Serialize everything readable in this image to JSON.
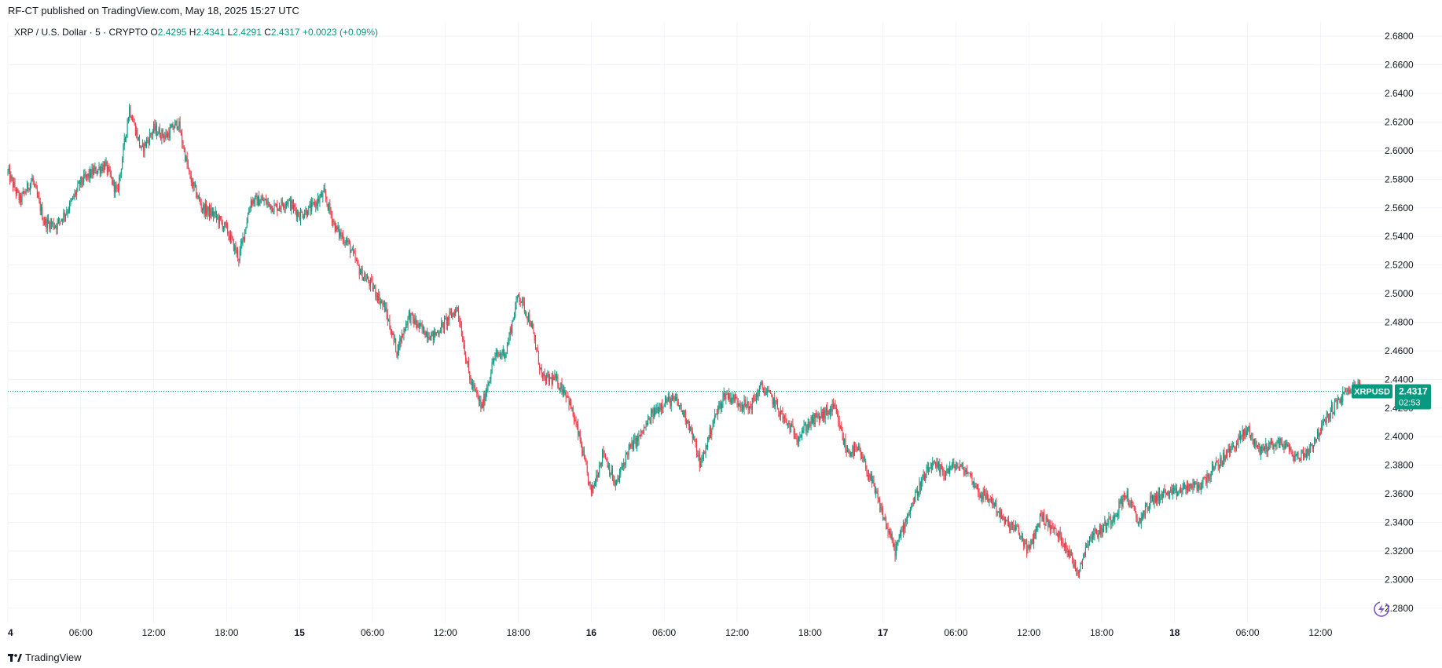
{
  "header": {
    "published_text": "RF-CT published on TradingView.com, May 18, 2025 15:27 UTC"
  },
  "legend": {
    "symbol": "XRP / U.S. Dollar · 5 · CRYPTO",
    "o_label": "O",
    "o_value": "2.4295",
    "h_label": "H",
    "h_value": "2.4341",
    "l_label": "L",
    "l_value": "2.4291",
    "c_label": "C",
    "c_value": "2.4317",
    "change": "+0.0023 (+0.09%)"
  },
  "price_tag": {
    "ticker": "XRPUSD",
    "price": "2.4317",
    "countdown": "02:53"
  },
  "footer": {
    "brand": "TradingView"
  },
  "colors": {
    "up": "#089981",
    "down": "#f23645",
    "grid": "#f0f3fa",
    "text": "#131722",
    "price_line": "#089981",
    "badge": "#7e57c2"
  },
  "icons": {
    "footer_logo": "tradingview-logo-icon",
    "bottom_right": "lightning-icon"
  },
  "chart_data": {
    "type": "candlestick",
    "title": "XRP / U.S. Dollar · 5 · CRYPTO",
    "interval_minutes": 5,
    "ylim": [
      2.27,
      2.69
    ],
    "y_ticks": [
      2.28,
      2.3,
      2.32,
      2.34,
      2.36,
      2.38,
      2.4,
      2.42,
      2.44,
      2.46,
      2.48,
      2.5,
      2.52,
      2.54,
      2.56,
      2.58,
      2.6,
      2.62,
      2.64,
      2.66,
      2.68
    ],
    "y_tick_labels": [
      "2.2800",
      "2.3000",
      "2.3200",
      "2.3400",
      "2.3600",
      "2.3800",
      "2.4000",
      "2.4200",
      "2.4400",
      "2.4600",
      "2.4800",
      "2.5000",
      "2.5200",
      "2.5400",
      "2.5600",
      "2.5800",
      "2.6000",
      "2.6200",
      "2.6400",
      "2.6600",
      "2.6800"
    ],
    "xlim_hours": [
      0,
      112.5
    ],
    "x_ticks": [
      {
        "hour": 0,
        "label": "4",
        "bold": true
      },
      {
        "hour": 6,
        "label": "06:00",
        "bold": false
      },
      {
        "hour": 12,
        "label": "12:00",
        "bold": false
      },
      {
        "hour": 18,
        "label": "18:00",
        "bold": false
      },
      {
        "hour": 24,
        "label": "15",
        "bold": true
      },
      {
        "hour": 30,
        "label": "06:00",
        "bold": false
      },
      {
        "hour": 36,
        "label": "12:00",
        "bold": false
      },
      {
        "hour": 42,
        "label": "18:00",
        "bold": false
      },
      {
        "hour": 48,
        "label": "16",
        "bold": true
      },
      {
        "hour": 54,
        "label": "06:00",
        "bold": false
      },
      {
        "hour": 60,
        "label": "12:00",
        "bold": false
      },
      {
        "hour": 66,
        "label": "18:00",
        "bold": false
      },
      {
        "hour": 72,
        "label": "17",
        "bold": true
      },
      {
        "hour": 78,
        "label": "06:00",
        "bold": false
      },
      {
        "hour": 84,
        "label": "12:00",
        "bold": false
      },
      {
        "hour": 90,
        "label": "18:00",
        "bold": false
      },
      {
        "hour": 96,
        "label": "18",
        "bold": true
      },
      {
        "hour": 102,
        "label": "06:00",
        "bold": false
      },
      {
        "hour": 108,
        "label": "12:00",
        "bold": false
      }
    ],
    "last_price": 2.4317,
    "close_path_hours": [
      0,
      1,
      2,
      3,
      4,
      5,
      6,
      7,
      8,
      9,
      10,
      11,
      12,
      13,
      14,
      15,
      16,
      17,
      18,
      19,
      20,
      21,
      22,
      23,
      24,
      25,
      26,
      27,
      28,
      29,
      30,
      31,
      32,
      33,
      34,
      35,
      36,
      37,
      38,
      39,
      40,
      41,
      42,
      43,
      44,
      45,
      46,
      47,
      48,
      49,
      50,
      51,
      52,
      53,
      54,
      55,
      56,
      57,
      58,
      59,
      60,
      61,
      62,
      63,
      64,
      65,
      66,
      67,
      68,
      69,
      70,
      71,
      72,
      73,
      74,
      75,
      76,
      77,
      78,
      79,
      80,
      81,
      82,
      83,
      84,
      85,
      86,
      87,
      88,
      89,
      90,
      91,
      92,
      93,
      94,
      95,
      96,
      97,
      98,
      99,
      100,
      101,
      102,
      103,
      104,
      105,
      106,
      107,
      108,
      109,
      110,
      111,
      111.5
    ],
    "close_path_prices": [
      2.585,
      2.565,
      2.58,
      2.55,
      2.548,
      2.56,
      2.578,
      2.585,
      2.59,
      2.57,
      2.63,
      2.6,
      2.615,
      2.61,
      2.62,
      2.58,
      2.56,
      2.555,
      2.545,
      2.525,
      2.565,
      2.565,
      2.56,
      2.565,
      2.555,
      2.56,
      2.57,
      2.545,
      2.535,
      2.515,
      2.505,
      2.49,
      2.46,
      2.485,
      2.475,
      2.47,
      2.48,
      2.49,
      2.44,
      2.42,
      2.455,
      2.46,
      2.5,
      2.48,
      2.44,
      2.44,
      2.43,
      2.4,
      2.36,
      2.39,
      2.365,
      2.39,
      2.4,
      2.415,
      2.425,
      2.425,
      2.41,
      2.38,
      2.41,
      2.43,
      2.425,
      2.42,
      2.435,
      2.425,
      2.41,
      2.4,
      2.41,
      2.415,
      2.42,
      2.39,
      2.39,
      2.37,
      2.345,
      2.32,
      2.345,
      2.365,
      2.38,
      2.375,
      2.38,
      2.375,
      2.36,
      2.355,
      2.34,
      2.335,
      2.32,
      2.345,
      2.335,
      2.325,
      2.305,
      2.33,
      2.335,
      2.345,
      2.36,
      2.34,
      2.355,
      2.36,
      2.36,
      2.365,
      2.365,
      2.375,
      2.385,
      2.395,
      2.405,
      2.39,
      2.395,
      2.395,
      2.385,
      2.39,
      2.405,
      2.42,
      2.43,
      2.435,
      2.4317
    ]
  }
}
